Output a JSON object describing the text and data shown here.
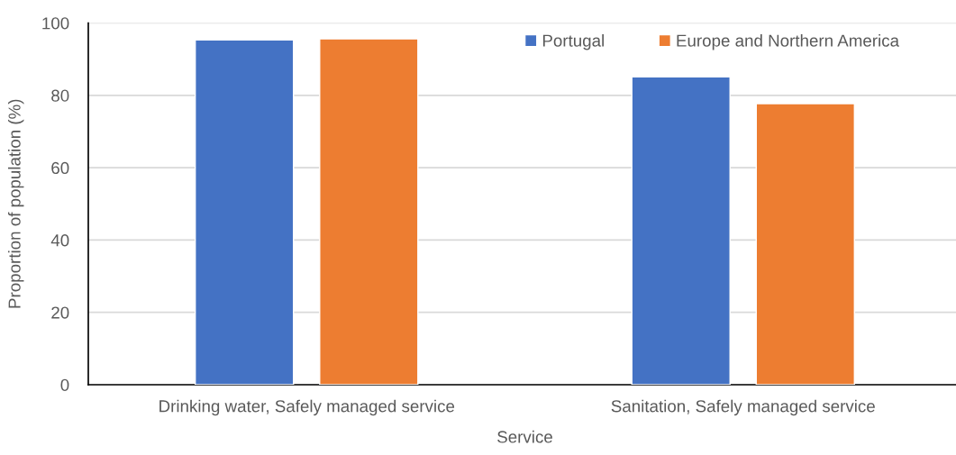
{
  "chart_data": {
    "type": "bar",
    "xlabel": "Service",
    "ylabel": "Proportion of population (%)",
    "categories": [
      "Drinking water, Safely managed service",
      "Sanitation, Safely managed service"
    ],
    "series": [
      {
        "name": "Portugal",
        "color": "#4472c4",
        "values": [
          95.3,
          85.1
        ]
      },
      {
        "name": "Europe and Northern America",
        "color": "#ed7d31",
        "values": [
          95.6,
          77.7
        ]
      }
    ],
    "ylim": [
      0,
      100
    ],
    "yticks": [
      0,
      20,
      40,
      60,
      80,
      100
    ],
    "grid": "y",
    "legend": "top right"
  }
}
